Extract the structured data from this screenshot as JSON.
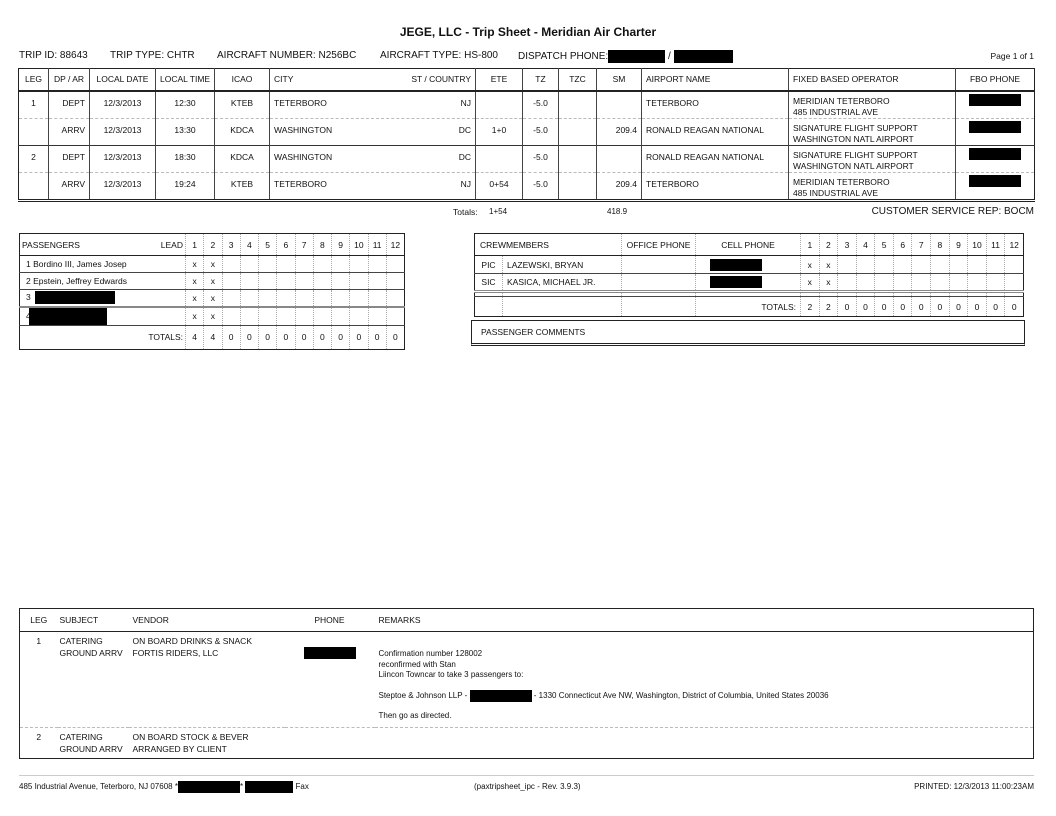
{
  "title": "JEGE, LLC  -  Trip Sheet  -  Meridian Air Charter",
  "header": {
    "trip_id": "TRIP ID: 88643",
    "trip_type": "TRIP TYPE: CHTR",
    "aircraft_number": "AIRCRAFT NUMBER: N256BC",
    "aircraft_type": "AIRCRAFT TYPE: HS-800",
    "dispatch_phone": "DISPATCH PHONE:",
    "separator": "/",
    "page": "Page 1 of 1"
  },
  "legs_table": {
    "columns": [
      "LEG",
      "DP / AR",
      "LOCAL DATE",
      "LOCAL TIME",
      "ICAO",
      "CITY",
      "ST / COUNTRY",
      "ETE",
      "TZ",
      "TZC",
      "SM",
      "AIRPORT NAME",
      "FIXED BASED OPERATOR",
      "FBO PHONE"
    ],
    "rows": [
      {
        "leg": "1",
        "dpar": "DEPT",
        "date": "12/3/2013",
        "time": "12:30",
        "icao": "KTEB",
        "city": "TETERBORO",
        "st": "NJ",
        "ete": "",
        "tz": "-5.0",
        "tzc": "",
        "sm": "",
        "airport": "TETERBORO",
        "fbo1": "MERIDIAN TETERBORO",
        "fbo2": "485 INDUSTRIAL AVE"
      },
      {
        "leg": "",
        "dpar": "ARRV",
        "date": "12/3/2013",
        "time": "13:30",
        "icao": "KDCA",
        "city": "WASHINGTON",
        "st": "DC",
        "ete": "1+0",
        "tz": "-5.0",
        "tzc": "",
        "sm": "209.4",
        "airport": "RONALD REAGAN NATIONAL",
        "fbo1": "SIGNATURE FLIGHT SUPPORT",
        "fbo2": "WASHINGTON NATL AIRPORT"
      },
      {
        "leg": "2",
        "dpar": "DEPT",
        "date": "12/3/2013",
        "time": "18:30",
        "icao": "KDCA",
        "city": "WASHINGTON",
        "st": "DC",
        "ete": "",
        "tz": "-5.0",
        "tzc": "",
        "sm": "",
        "airport": "RONALD REAGAN NATIONAL",
        "fbo1": "SIGNATURE FLIGHT SUPPORT",
        "fbo2": "WASHINGTON NATL AIRPORT"
      },
      {
        "leg": "",
        "dpar": "ARRV",
        "date": "12/3/2013",
        "time": "19:24",
        "icao": "KTEB",
        "city": "TETERBORO",
        "st": "NJ",
        "ete": "0+54",
        "tz": "-5.0",
        "tzc": "",
        "sm": "209.4",
        "airport": "TETERBORO",
        "fbo1": "MERIDIAN TETERBORO",
        "fbo2": "485 INDUSTRIAL AVE"
      }
    ],
    "totals_label": "Totals:",
    "total_ete": "1+54",
    "total_sm": "418.9",
    "csr": "CUSTOMER SERVICE REP:  BOCM"
  },
  "passengers": {
    "header": "PASSENGERS",
    "lead": "LEAD",
    "legs": [
      "1",
      "2",
      "3",
      "4",
      "5",
      "6",
      "7",
      "8",
      "9",
      "10",
      "11",
      "12"
    ],
    "rows": [
      {
        "num": "1",
        "name": "Bordino III, James Josep",
        "marks": [
          "x",
          "x"
        ]
      },
      {
        "num": "2",
        "name": "Epstein, Jeffrey Edwards",
        "marks": [
          "x",
          "x"
        ]
      },
      {
        "num": "3",
        "name": "",
        "marks": [
          "x",
          "x"
        ]
      },
      {
        "num": "4",
        "name": "",
        "marks": [
          "x",
          "x"
        ]
      }
    ],
    "totals_label": "TOTALS:",
    "totals": [
      "4",
      "4",
      "0",
      "0",
      "0",
      "0",
      "0",
      "0",
      "0",
      "0",
      "0",
      "0"
    ]
  },
  "crew": {
    "header": "CREWMEMBERS",
    "office_phone": "OFFICE PHONE",
    "cell_phone": "CELL PHONE",
    "legs": [
      "1",
      "2",
      "3",
      "4",
      "5",
      "6",
      "7",
      "8",
      "9",
      "10",
      "11",
      "12"
    ],
    "rows": [
      {
        "pos": "PIC",
        "name": "LAZEWSKI, BRYAN",
        "marks": [
          "x",
          "x"
        ]
      },
      {
        "pos": "SIC",
        "name": "KASICA, MICHAEL JR.",
        "marks": [
          "x",
          "x"
        ]
      }
    ],
    "totals_label": "TOTALS:",
    "totals": [
      "2",
      "2",
      "0",
      "0",
      "0",
      "0",
      "0",
      "0",
      "0",
      "0",
      "0",
      "0"
    ]
  },
  "passenger_comments": "PASSENGER COMMENTS",
  "services": {
    "columns": [
      "LEG",
      "SUBJECT",
      "VENDOR",
      "PHONE",
      "REMARKS"
    ],
    "rows": [
      {
        "leg": "1",
        "subject1": "CATERING",
        "subject2": "GROUND ARRV",
        "vendor1": "ON BOARD DRINKS & SNACK",
        "vendor2": "FORTIS RIDERS, LLC",
        "remarks": [
          "Confirmation number 128002",
          "reconfirmed with Stan",
          "Liincon Towncar to take 3 passengers to:"
        ],
        "remark_addr_a": "Steptoe & Johnson LLP -",
        "remark_addr_b": "- 1330 Connecticut Ave NW, Washington, District of Columbia, United States 20036",
        "remark_end": "Then go as directed."
      },
      {
        "leg": "2",
        "subject1": "CATERING",
        "subject2": "GROUND ARRV",
        "vendor1": "ON BOARD STOCK & BEVER",
        "vendor2": "ARRANGED BY CLIENT"
      }
    ]
  },
  "footer": {
    "address": "485 Industrial Avenue, Teterboro, NJ 07608 *",
    "star": "*",
    "fax": "Fax",
    "revision": "(paxtripsheet_ipc -  Rev. 3.9.3)",
    "printed": "PRINTED:  12/3/2013 11:00:23AM"
  }
}
